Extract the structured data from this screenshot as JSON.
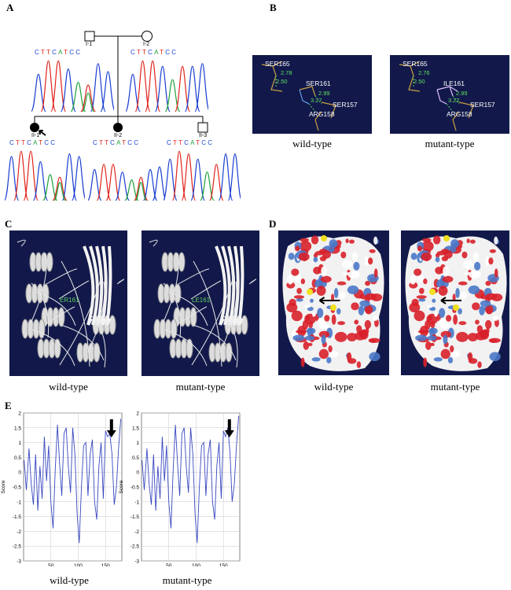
{
  "panels": {
    "A": {
      "letter": "A",
      "pedigree": {
        "I1": "I-1",
        "I2": "I-2",
        "II1": "II-1",
        "II2": "II-2",
        "II3": "II-3"
      },
      "sequences": {
        "I1": [
          "C",
          "T",
          "T",
          "C",
          "A",
          "T",
          "C",
          "C"
        ],
        "I2": [
          "C",
          "T",
          "T",
          "C",
          "A",
          "T",
          "C",
          "C"
        ],
        "II1": [
          "C",
          "T",
          "T",
          "C",
          "A",
          "T",
          "C",
          "C"
        ],
        "II2": [
          "C",
          "T",
          "T",
          "C",
          "A",
          "T",
          "C",
          "C"
        ],
        "II3": [
          "C",
          "T",
          "T",
          "C",
          "A",
          "T",
          "C",
          "C"
        ]
      }
    },
    "B": {
      "letter": "B",
      "wild_labels": {
        "r165": "SER165",
        "r161": "SER161",
        "r157": "SER157",
        "r158": "ARG158",
        "d1": "2.78",
        "d2": "2.50",
        "d3": "2.99",
        "d4": "3.27"
      },
      "mutant_labels": {
        "r165": "SER165",
        "r161": "ILE161",
        "r157": "SER157",
        "r158": "ARG158",
        "d1": "2.76",
        "d2": "2.50",
        "d3": "2.99",
        "d4": "3.22"
      },
      "caption_wild": "wild-type",
      "caption_mutant": "mutant-type"
    },
    "C": {
      "letter": "C",
      "wild_label": "ER161",
      "mutant_label": "LE161",
      "caption_wild": "wild-type",
      "caption_mutant": "mutant-type"
    },
    "D": {
      "letter": "D",
      "caption_wild": "wild-type",
      "caption_mutant": "mutant-type"
    },
    "E": {
      "letter": "E",
      "caption_wild": "wild-type",
      "caption_mutant": "mutant-type"
    }
  },
  "chart_data": [
    {
      "type": "line",
      "ylabel": "Score",
      "ylim": [
        -3,
        2
      ],
      "xlim": [
        0,
        180
      ],
      "yticks": [
        "2",
        "1.5",
        "1",
        "0.5",
        "0",
        "-0.5",
        "-1",
        "-1.5",
        "-2",
        "-2.5",
        "-3"
      ],
      "xticks": [
        "50",
        "100",
        "150"
      ],
      "x": [
        1,
        5,
        10,
        14,
        18,
        22,
        26,
        30,
        34,
        38,
        42,
        46,
        50,
        54,
        58,
        62,
        66,
        70,
        74,
        78,
        82,
        86,
        90,
        94,
        98,
        102,
        106,
        110,
        114,
        118,
        122,
        126,
        130,
        134,
        138,
        142,
        146,
        150,
        154,
        158,
        162,
        166,
        170,
        174,
        178
      ],
      "values": [
        0.4,
        -0.6,
        0.8,
        -0.4,
        -1.1,
        0.6,
        -1.3,
        0.2,
        -0.9,
        1.2,
        -0.3,
        0.9,
        -1.0,
        -1.9,
        0.1,
        1.6,
        0.3,
        -0.8,
        1.3,
        1.5,
        0.2,
        -0.7,
        1.5,
        0.6,
        -1.4,
        -2.4,
        -0.5,
        0.9,
        1.0,
        -0.8,
        0.6,
        1.1,
        -1.0,
        -1.6,
        0.2,
        1.0,
        -0.9,
        1.4,
        1.2,
        1.3,
        0.6,
        -1.1,
        -0.5,
        0.8,
        1.8
      ],
      "annotation": "arrow at residue 161"
    },
    {
      "type": "line",
      "ylabel": "Score",
      "ylim": [
        -3,
        2
      ],
      "xlim": [
        0,
        180
      ],
      "yticks": [
        "2",
        "1.5",
        "1",
        "0.5",
        "0",
        "-0.5",
        "-1",
        "-1.5",
        "-2",
        "-2.5",
        "-3"
      ],
      "xticks": [
        "50",
        "100",
        "150"
      ],
      "x": [
        1,
        5,
        10,
        14,
        18,
        22,
        26,
        30,
        34,
        38,
        42,
        46,
        50,
        54,
        58,
        62,
        66,
        70,
        74,
        78,
        82,
        86,
        90,
        94,
        98,
        102,
        106,
        110,
        114,
        118,
        122,
        126,
        130,
        134,
        138,
        142,
        146,
        150,
        154,
        158,
        162,
        166,
        170,
        174,
        178
      ],
      "values": [
        0.4,
        -0.6,
        0.8,
        -0.4,
        -1.1,
        0.6,
        -1.3,
        0.2,
        -0.9,
        1.2,
        -0.3,
        0.9,
        -1.0,
        -1.9,
        0.1,
        1.6,
        0.3,
        -0.8,
        1.3,
        1.5,
        0.2,
        -0.7,
        1.5,
        0.6,
        -1.4,
        -2.4,
        -0.5,
        0.9,
        1.0,
        -0.8,
        0.6,
        1.1,
        -1.0,
        -1.6,
        0.2,
        1.0,
        -0.9,
        1.4,
        1.2,
        1.5,
        0.7,
        -1.0,
        -0.4,
        0.9,
        1.9
      ],
      "annotation": "arrow at residue 161"
    }
  ]
}
